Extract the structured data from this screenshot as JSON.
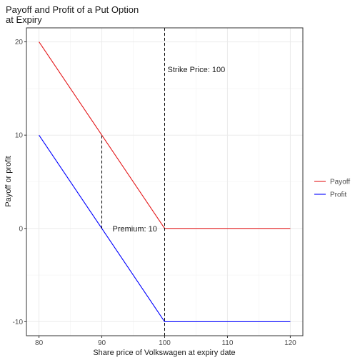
{
  "chart_data": {
    "type": "line",
    "title": [
      "Payoff and Profit of a Put Option",
      "at Expiry"
    ],
    "x_label": "Share price of Volkswagen at expiry date",
    "y_label": "Payoff or profit",
    "x": [
      80,
      100,
      120
    ],
    "series": [
      {
        "name": "Payoff",
        "color": "#e41a1c",
        "values": [
          20,
          0,
          0
        ]
      },
      {
        "name": "Profit",
        "color": "#0000ff",
        "values": [
          10,
          -10,
          -10
        ]
      }
    ],
    "xlim": [
      78,
      122
    ],
    "xticks": [
      80,
      90,
      100,
      110,
      120
    ],
    "ylim": [
      -11.5,
      21.5
    ],
    "yticks": [
      -10,
      0,
      10,
      20
    ],
    "grid": true,
    "legend": "right",
    "vlines": [
      {
        "x": 100,
        "label": "Strike Price: 100"
      }
    ],
    "segments": [
      {
        "x": 90,
        "y": [
          0,
          10
        ],
        "label": "Premium: 10"
      }
    ]
  }
}
